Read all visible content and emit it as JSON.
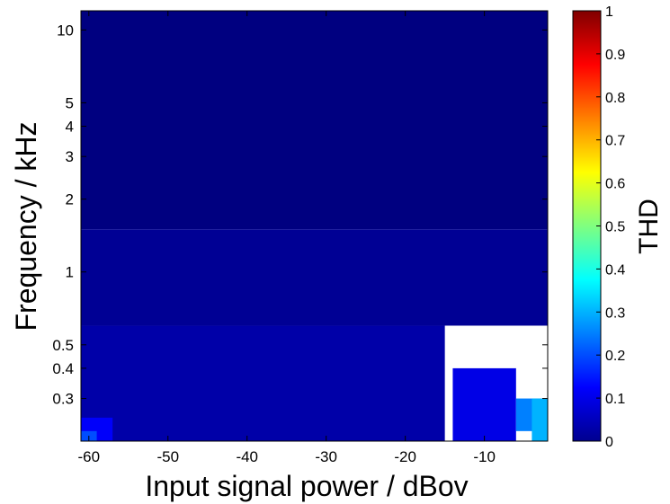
{
  "chart_data": {
    "type": "heatmap",
    "title": "",
    "xlabel": "Input signal power / dBov",
    "ylabel": "Frequency / kHz",
    "xlim": [
      -61,
      -2
    ],
    "ylim": [
      0.2,
      12
    ],
    "y_scale": "log",
    "x_ticks": [
      -60,
      -50,
      -40,
      -30,
      -20,
      -10
    ],
    "x_tick_labels": [
      "-60",
      "-50",
      "-40",
      "-30",
      "-20",
      "-10"
    ],
    "y_ticks": [
      0.3,
      0.4,
      0.5,
      1,
      2,
      3,
      4,
      5,
      10
    ],
    "y_tick_labels": [
      "0.3",
      "0.4",
      "0.5",
      "1",
      "2",
      "3",
      "4",
      "5",
      "10"
    ],
    "colorbar": {
      "label": "THD",
      "range": [
        0,
        1
      ],
      "colormap": "jet",
      "ticks": [
        0,
        0.1,
        0.2,
        0.3,
        0.4,
        0.5,
        0.6,
        0.7,
        0.8,
        0.9,
        1
      ],
      "tick_labels": [
        "0",
        "0.1",
        "0.2",
        "0.3",
        "0.4",
        "0.5",
        "0.6",
        "0.7",
        "0.8",
        "0.9",
        "1"
      ]
    },
    "grid": false,
    "z_regions": [
      {
        "x_range": [
          -61,
          -2
        ],
        "y_range": [
          1.5,
          12
        ],
        "thd": 0.0
      },
      {
        "x_range": [
          -61,
          -2
        ],
        "y_range": [
          0.6,
          1.5
        ],
        "thd": 0.02
      },
      {
        "x_range": [
          -61,
          -15
        ],
        "y_range": [
          0.2,
          0.6
        ],
        "thd": 0.04
      },
      {
        "x_range": [
          -61,
          -57
        ],
        "y_range": [
          0.2,
          0.25
        ],
        "thd": 0.12
      },
      {
        "x_range": [
          -61,
          -59
        ],
        "y_range": [
          0.2,
          0.22
        ],
        "thd": 0.2
      },
      {
        "x_range": [
          -14,
          -6
        ],
        "y_range": [
          0.2,
          0.4
        ],
        "thd": 0.1
      },
      {
        "x_range": [
          -6,
          -2
        ],
        "y_range": [
          0.22,
          0.3
        ],
        "thd": 0.25
      },
      {
        "x_range": [
          -4,
          -2
        ],
        "y_range": [
          0.2,
          0.3
        ],
        "thd": 0.3
      }
    ]
  }
}
